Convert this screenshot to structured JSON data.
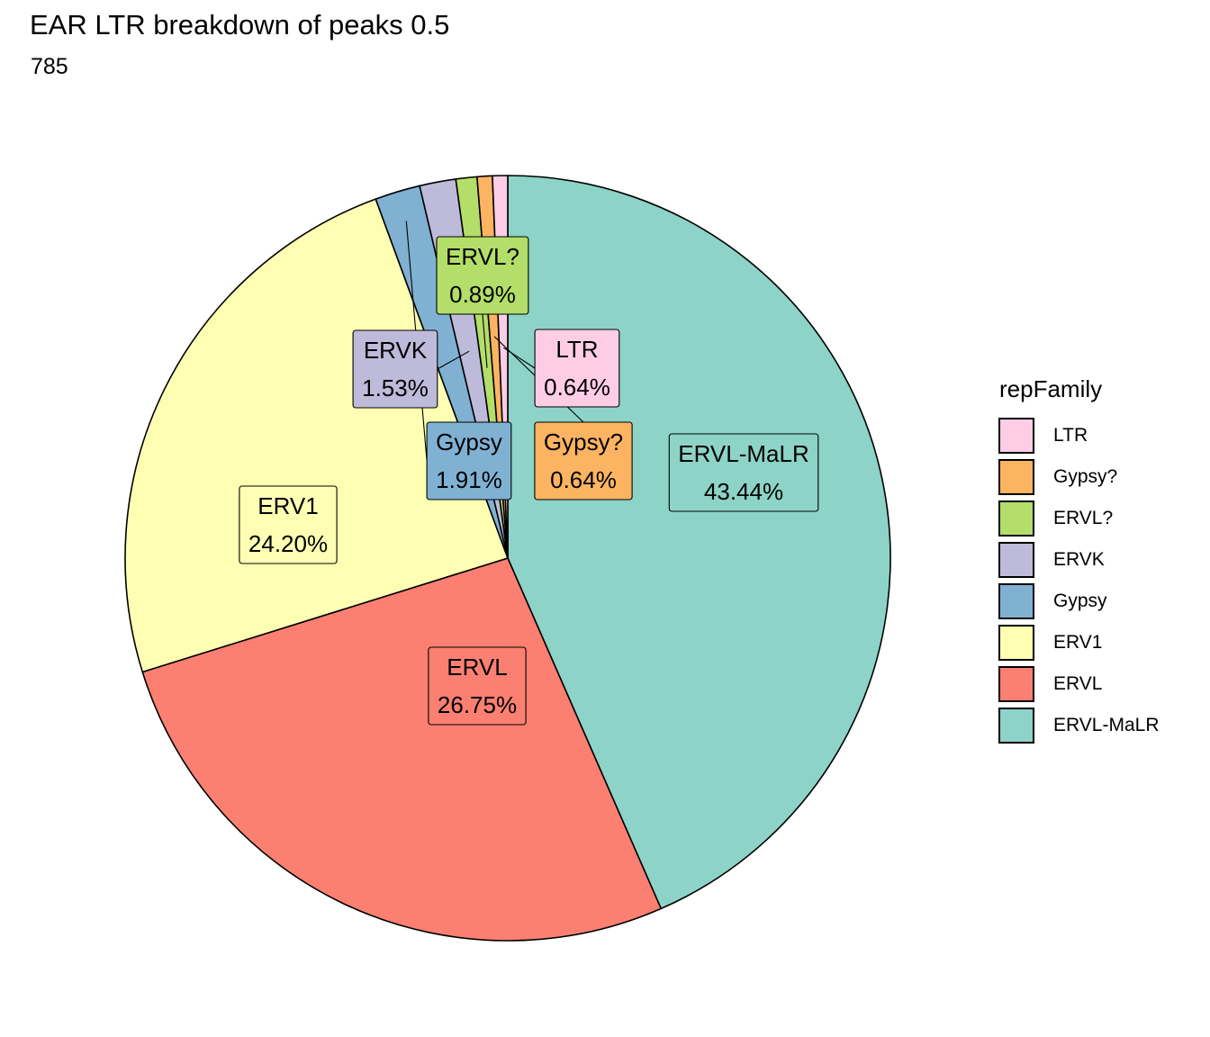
{
  "chart_data": {
    "type": "pie",
    "title": "EAR LTR breakdown of peaks 0.5",
    "subtitle": "785",
    "legend_title": "repFamily",
    "legend_position": "right",
    "slices": [
      {
        "label": "ERVL-MaLR",
        "value": 43.44,
        "display": "43.44%",
        "color": "#8DD3C7"
      },
      {
        "label": "ERVL",
        "value": 26.75,
        "display": "26.75%",
        "color": "#FB8072"
      },
      {
        "label": "ERV1",
        "value": 24.2,
        "display": "24.20%",
        "color": "#FFFFB3"
      },
      {
        "label": "Gypsy",
        "value": 1.91,
        "display": "1.91%",
        "color": "#80B1D3"
      },
      {
        "label": "ERVK",
        "value": 1.53,
        "display": "1.53%",
        "color": "#BEBADA"
      },
      {
        "label": "ERVL?",
        "value": 0.89,
        "display": "0.89%",
        "color": "#B3DE69"
      },
      {
        "label": "Gypsy?",
        "value": 0.64,
        "display": "0.64%",
        "color": "#FDB462"
      },
      {
        "label": "LTR",
        "value": 0.64,
        "display": "0.64%",
        "color": "#FCCDE5"
      }
    ],
    "legend_order": [
      "LTR",
      "Gypsy?",
      "ERVL?",
      "ERVK",
      "Gypsy",
      "ERV1",
      "ERVL",
      "ERVL-MaLR"
    ]
  }
}
